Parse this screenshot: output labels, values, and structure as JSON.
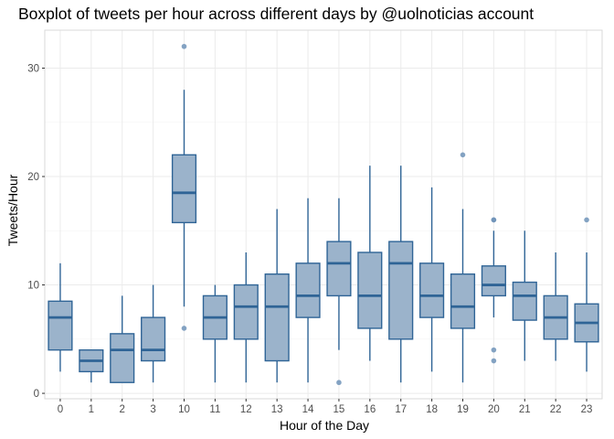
{
  "chart_data": {
    "type": "boxplot",
    "title": "Boxplot of tweets per hour across different days by @uolnoticias account",
    "xlabel": "Hour of the Day",
    "ylabel": "Tweets/Hour",
    "ylim": [
      -0.5,
      33.5
    ],
    "yticks": [
      0,
      10,
      20,
      30
    ],
    "grid": true,
    "colors": {
      "fill": "#9bb3cb",
      "stroke": "#2f6496",
      "outlier": "#6f93b8",
      "grid": "#ebebeb",
      "panel_border": "#d9d9d9"
    },
    "boxes": [
      {
        "category": "0",
        "whisker_low": 2,
        "q1": 4,
        "median": 7,
        "q3": 8.5,
        "whisker_high": 12,
        "outliers": []
      },
      {
        "category": "1",
        "whisker_low": 1,
        "q1": 2,
        "median": 3,
        "q3": 4,
        "whisker_high": 4,
        "outliers": []
      },
      {
        "category": "2",
        "whisker_low": 1,
        "q1": 1,
        "median": 4,
        "q3": 5.5,
        "whisker_high": 9,
        "outliers": []
      },
      {
        "category": "3",
        "whisker_low": 1,
        "q1": 3,
        "median": 4,
        "q3": 7,
        "whisker_high": 10,
        "outliers": []
      },
      {
        "category": "10",
        "whisker_low": 8,
        "q1": 15.75,
        "median": 18.5,
        "q3": 22,
        "whisker_high": 28,
        "outliers": [
          6,
          32
        ]
      },
      {
        "category": "11",
        "whisker_low": 1,
        "q1": 5,
        "median": 7,
        "q3": 9,
        "whisker_high": 10,
        "outliers": []
      },
      {
        "category": "12",
        "whisker_low": 1,
        "q1": 5,
        "median": 8,
        "q3": 10,
        "whisker_high": 13,
        "outliers": []
      },
      {
        "category": "13",
        "whisker_low": 1,
        "q1": 3,
        "median": 8,
        "q3": 11,
        "whisker_high": 17,
        "outliers": []
      },
      {
        "category": "14",
        "whisker_low": 1,
        "q1": 7,
        "median": 9,
        "q3": 12,
        "whisker_high": 18,
        "outliers": []
      },
      {
        "category": "15",
        "whisker_low": 4,
        "q1": 9,
        "median": 12,
        "q3": 14,
        "whisker_high": 18,
        "outliers": [
          1
        ]
      },
      {
        "category": "16",
        "whisker_low": 3,
        "q1": 6,
        "median": 9,
        "q3": 13,
        "whisker_high": 21,
        "outliers": []
      },
      {
        "category": "17",
        "whisker_low": 1,
        "q1": 5,
        "median": 12,
        "q3": 14,
        "whisker_high": 21,
        "outliers": []
      },
      {
        "category": "18",
        "whisker_low": 2,
        "q1": 7,
        "median": 9,
        "q3": 12,
        "whisker_high": 19,
        "outliers": []
      },
      {
        "category": "19",
        "whisker_low": 1,
        "q1": 6,
        "median": 8,
        "q3": 11,
        "whisker_high": 17,
        "outliers": [
          22
        ]
      },
      {
        "category": "20",
        "whisker_low": 7,
        "q1": 9,
        "median": 10,
        "q3": 11.75,
        "whisker_high": 15,
        "outliers": [
          3,
          4,
          16,
          16
        ]
      },
      {
        "category": "21",
        "whisker_low": 3,
        "q1": 6.75,
        "median": 9,
        "q3": 10.25,
        "whisker_high": 15,
        "outliers": []
      },
      {
        "category": "22",
        "whisker_low": 3,
        "q1": 5,
        "median": 7,
        "q3": 9,
        "whisker_high": 13,
        "outliers": []
      },
      {
        "category": "23",
        "whisker_low": 2,
        "q1": 4.75,
        "median": 6.5,
        "q3": 8.25,
        "whisker_high": 13,
        "outliers": [
          16
        ]
      }
    ]
  }
}
